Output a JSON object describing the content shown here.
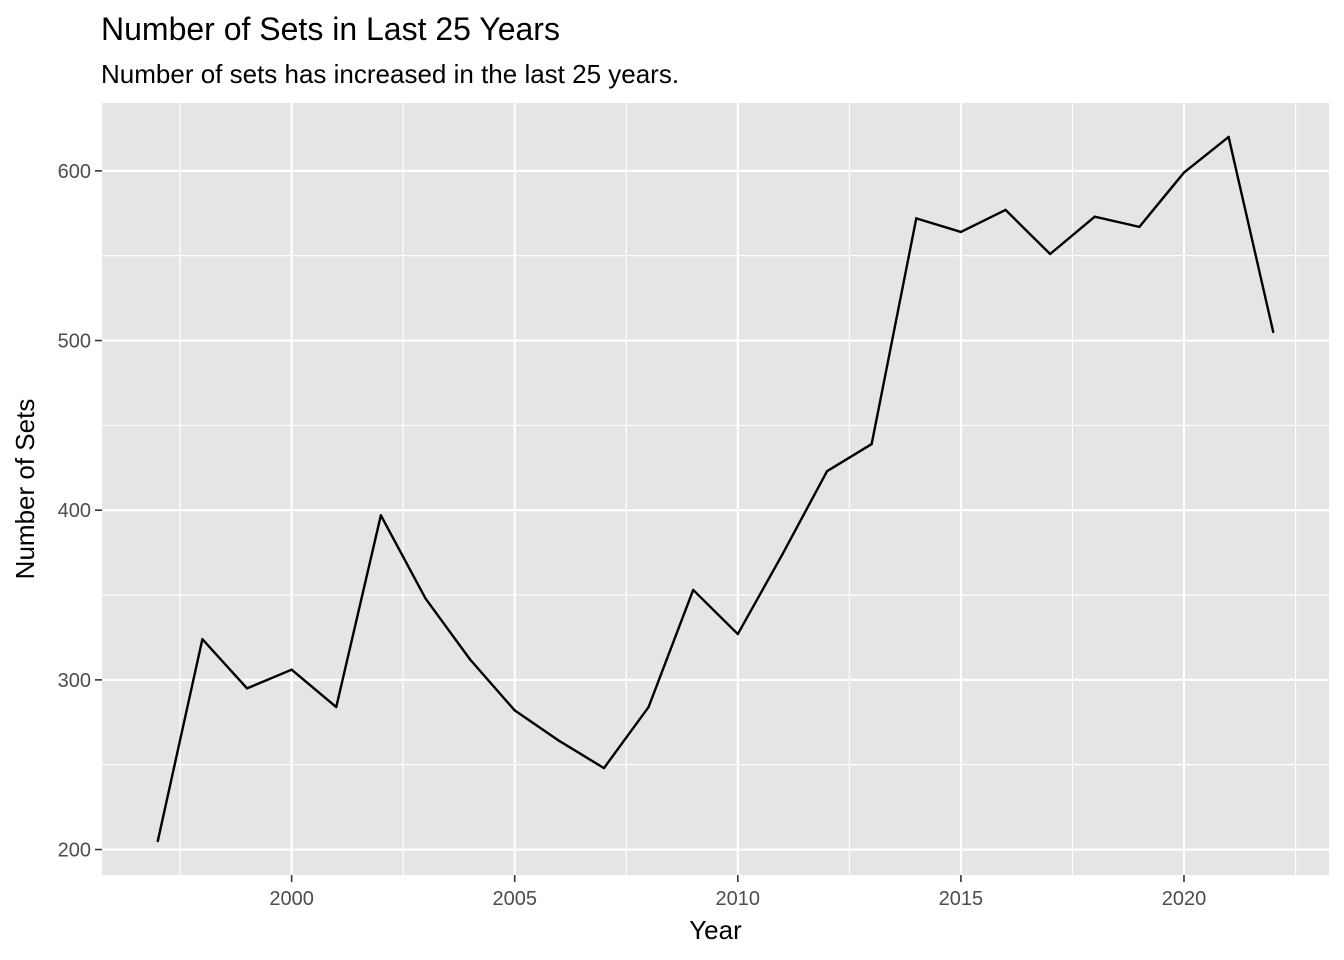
{
  "chart_data": {
    "type": "line",
    "title": "Number of Sets in Last 25 Years",
    "subtitle": "Number of sets has increased in the last 25 years.",
    "xlabel": "Year",
    "ylabel": "Number of Sets",
    "xlim": [
      1995.75,
      2023.25
    ],
    "ylim": [
      185,
      640
    ],
    "grid": true,
    "x_major_ticks": [
      2000,
      2005,
      2010,
      2015,
      2020
    ],
    "x_major_tick_labels": [
      "2000",
      "2005",
      "2010",
      "2015",
      "2020"
    ],
    "x_minor_ticks": [
      1997.5,
      2002.5,
      2007.5,
      2012.5,
      2017.5,
      2022.5
    ],
    "y_major_ticks": [
      200,
      300,
      400,
      500,
      600
    ],
    "y_major_tick_labels": [
      "200",
      "300",
      "400",
      "500",
      "600"
    ],
    "y_minor_ticks": [
      250,
      350,
      450,
      550
    ],
    "colors": {
      "panel": "#e5e5e5",
      "grid": "#ffffff",
      "line": "#000000",
      "tick": "#333333"
    },
    "series": [
      {
        "name": "Number of Sets",
        "x": [
          1997,
          1998,
          1999,
          2000,
          2001,
          2002,
          2003,
          2004,
          2005,
          2006,
          2007,
          2008,
          2009,
          2010,
          2011,
          2012,
          2013,
          2014,
          2015,
          2016,
          2017,
          2018,
          2019,
          2020,
          2021,
          2022
        ],
        "y": [
          205,
          324,
          295,
          306,
          284,
          397,
          348,
          312,
          282,
          264,
          248,
          284,
          353,
          327,
          374,
          423,
          439,
          572,
          564,
          577,
          551,
          573,
          567,
          599,
          620,
          505
        ]
      }
    ]
  }
}
